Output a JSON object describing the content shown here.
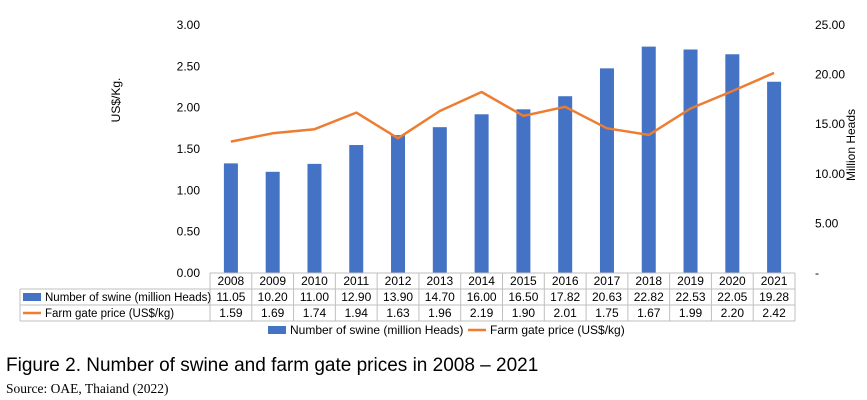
{
  "chart_data": {
    "type": "bar+line",
    "categories": [
      "2008",
      "2009",
      "2010",
      "2011",
      "2012",
      "2013",
      "2014",
      "2015",
      "2016",
      "2017",
      "2018",
      "2019",
      "2020",
      "2021"
    ],
    "series": [
      {
        "name": "Number of swine (million Heads)",
        "type": "bar",
        "axis": "right",
        "color": "#4472C4",
        "values": [
          11.05,
          10.2,
          11.0,
          12.9,
          13.9,
          14.7,
          16.0,
          16.5,
          17.82,
          20.63,
          22.82,
          22.53,
          22.05,
          19.28
        ],
        "table_labels": [
          "11.05",
          "10.20",
          "11.00",
          "12.90",
          "13.90",
          "14.70",
          "16.00",
          "16.50",
          "17.82",
          "20.63",
          "22.82",
          "22.53",
          "22.05",
          "19.28"
        ]
      },
      {
        "name": "Farm gate price (US$/kg)",
        "type": "line",
        "axis": "left",
        "color": "#ED7D31",
        "values": [
          1.59,
          1.69,
          1.74,
          1.94,
          1.63,
          1.96,
          2.19,
          1.9,
          2.01,
          1.75,
          1.67,
          1.99,
          2.2,
          2.42
        ],
        "table_labels": [
          "1.59",
          "1.69",
          "1.74",
          "1.94",
          "1.63",
          "1.96",
          "2.19",
          "1.90",
          "2.01",
          "1.75",
          "1.67",
          "1.99",
          "2.20",
          "2.42"
        ]
      }
    ],
    "left_axis": {
      "label": "US$/Kg.",
      "range": [
        0,
        3
      ],
      "ticks": [
        "0.00",
        "0.50",
        "1.00",
        "1.50",
        "2.00",
        "2.50",
        "3.00"
      ]
    },
    "right_axis": {
      "label": "Million Heads",
      "range": [
        0,
        25
      ],
      "ticks": [
        "-",
        "5.00",
        "10.00",
        "15.00",
        "20.00",
        "25.00"
      ]
    },
    "legend_position": "bottom",
    "data_table": true,
    "grid": false
  },
  "caption": "Figure 2. Number of swine and farm gate prices in 2008 – 2021",
  "source": "Source: OAE, Thaiand (2022)"
}
